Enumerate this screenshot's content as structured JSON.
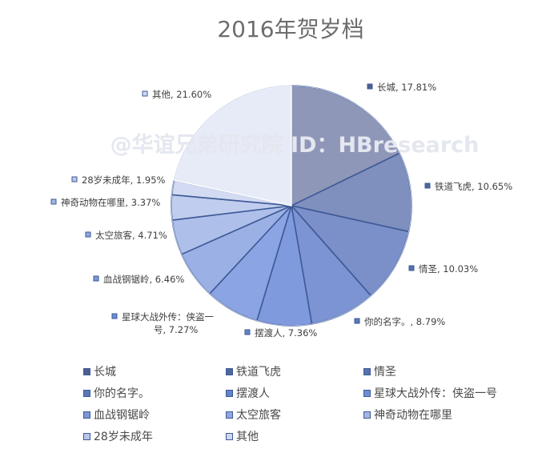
{
  "chart_data": {
    "type": "pie",
    "title": "2016年贺岁档",
    "watermark": "@华谊兄弟研究院 ID：HBresearch",
    "slices": [
      {
        "name": "长城",
        "value": 17.81,
        "label": "长城, 17.81%",
        "color": "#8f97b8",
        "swatch": "#4d5f92"
      },
      {
        "name": "铁道飞虎",
        "value": 10.65,
        "label": "铁道飞虎, 10.65%",
        "color": "#7f8fbe",
        "swatch": "#4f679f"
      },
      {
        "name": "情圣",
        "value": 10.03,
        "label": "情圣, 10.03%",
        "color": "#7b90c9",
        "swatch": "#5571ad"
      },
      {
        "name": "你的名字。",
        "value": 8.79,
        "label": "你的名字。, 8.79%",
        "color": "#7c94d3",
        "swatch": "#5a78b8"
      },
      {
        "name": "摆渡人",
        "value": 7.36,
        "label": "摆渡人, 7.36%",
        "color": "#809ade",
        "swatch": "#6383c9"
      },
      {
        "name": "星球大战外传：侠盗一号",
        "value": 7.27,
        "label": "星球大战外传：侠盗一号, 7.27%",
        "label_lines": [
          "星球大战外传：侠盗一",
          "号, 7.27%"
        ],
        "color": "#8ba4e3",
        "swatch": "#6e8dd4"
      },
      {
        "name": "血战钢锯岭",
        "value": 6.46,
        "label": "血战钢锯岭, 6.46%",
        "color": "#9bb1e6",
        "swatch": "#7b97d8"
      },
      {
        "name": "太空旅客",
        "value": 4.71,
        "label": "太空旅客, 4.71%",
        "color": "#aebfea",
        "swatch": "#8ea7dd"
      },
      {
        "name": "神奇动物在哪里",
        "value": 3.37,
        "label": "神奇动物在哪里, 3.37%",
        "color": "#c0cdee",
        "swatch": "#a3b6e3"
      },
      {
        "name": "28岁未成年",
        "value": 1.95,
        "label": "28岁未成年, 1.95%",
        "color": "#d2dbf2",
        "swatch": "#b8c6e9"
      },
      {
        "name": "其他",
        "value": 21.6,
        "label": "其他, 21.60%",
        "color": "#e6ebf7",
        "swatch": "#cfd8ef"
      }
    ],
    "legend_placement": "bottom",
    "border_color": "#3f5a96"
  }
}
